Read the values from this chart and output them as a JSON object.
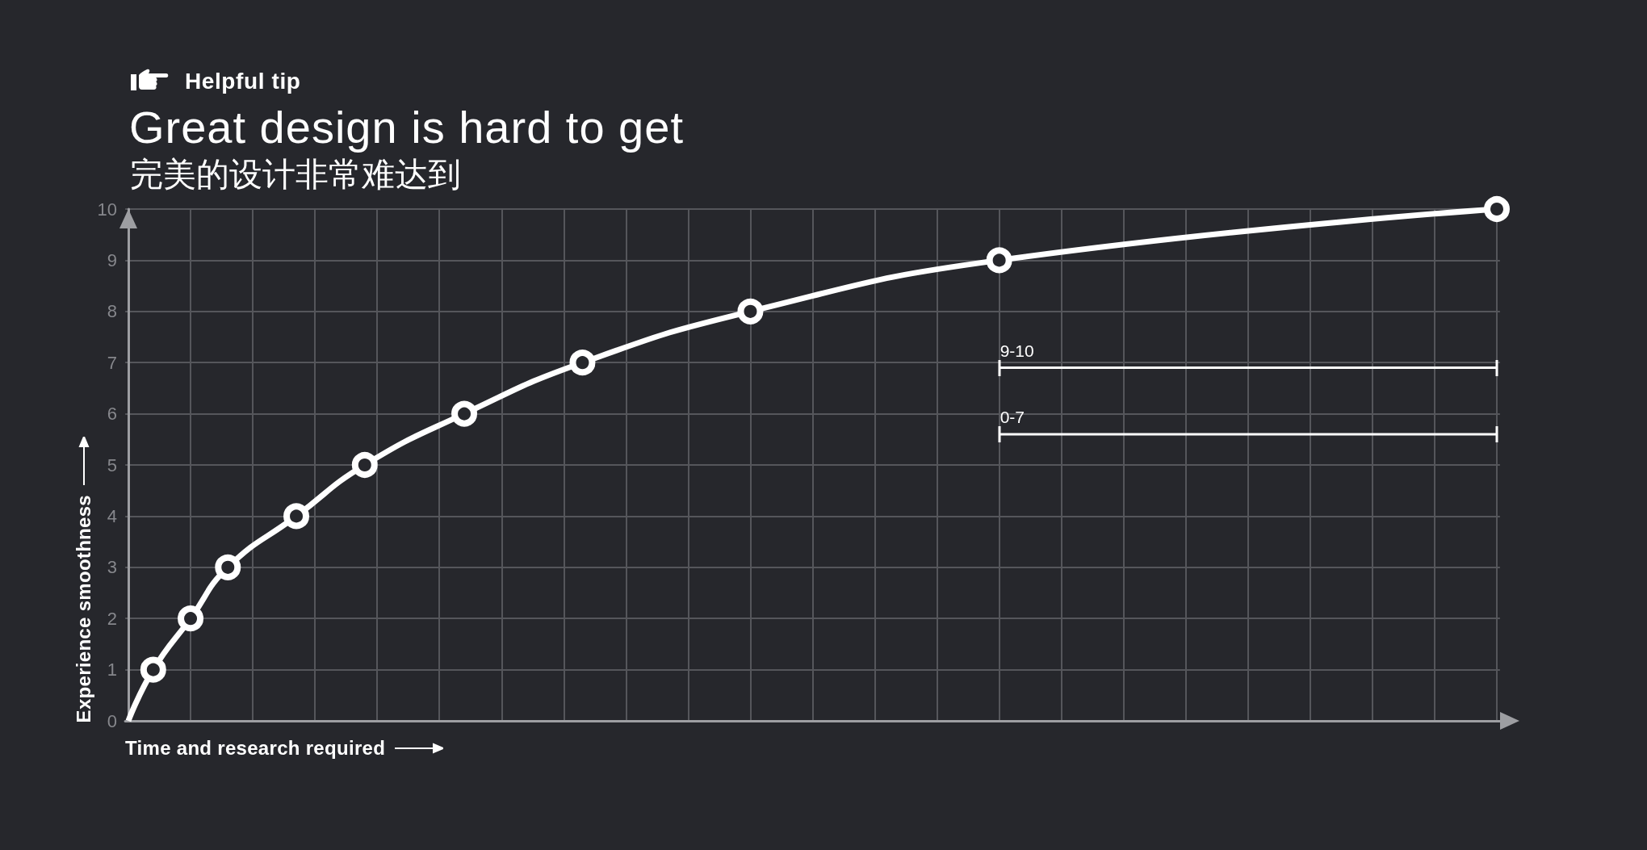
{
  "chart_data": {
    "type": "line",
    "title": "Great design is hard to get",
    "subtitle": "完美的设计非常难达到",
    "xlabel": "Time and research required",
    "ylabel": "Experience smoothness",
    "annotations": [
      "Helpful tip"
    ],
    "categories": [
      null,
      null,
      null,
      null,
      null,
      null,
      null,
      null,
      null,
      null,
      null,
      null,
      null,
      null,
      null,
      null,
      null,
      null,
      null,
      null,
      null,
      null,
      null,
      null,
      null,
      null,
      null,
      null,
      null,
      null,
      null,
      null,
      null,
      null,
      null,
      null,
      null,
      null,
      null,
      null,
      null,
      null,
      null,
      null,
      null,
      null,
      null,
      null,
      null,
      null,
      null,
      null,
      null,
      null,
      null,
      null,
      null,
      null,
      null,
      null,
      null,
      null,
      null,
      null,
      null,
      null,
      null,
      null,
      null,
      null,
      null,
      null,
      null,
      null,
      null,
      null,
      null,
      null,
      null,
      null,
      null,
      null,
      null,
      null,
      null,
      null,
      null,
      null,
      null,
      null,
      null,
      null,
      null,
      null,
      null,
      null,
      null,
      null,
      null,
      null,
      null,
      null,
      null,
      null,
      null,
      null,
      null,
      null,
      null,
      null,
      null,
      null,
      null,
      null,
      null,
      null,
      null,
      null,
      null,
      null,
      null,
      null,
      null,
      null,
      null,
      null,
      null,
      null,
      null,
      null,
      null,
      null,
      null,
      null,
      null,
      null,
      null,
      null,
      null,
      null,
      null,
      null,
      null,
      null,
      null,
      null,
      null,
      null,
      null,
      null,
      null,
      null,
      null,
      null,
      null,
      null,
      null,
      null,
      null,
      null,
      null,
      null,
      null,
      null,
      null,
      null,
      null,
      null,
      null,
      null,
      null,
      null,
      null,
      null,
      null,
      null,
      null,
      null,
      null,
      null,
      null,
      null,
      null,
      null,
      null,
      null,
      null,
      null,
      null,
      null,
      null,
      null,
      null,
      null,
      null,
      null,
      null,
      null,
      null,
      null,
      null,
      null,
      null,
      null,
      null,
      null,
      null,
      null,
      null,
      null,
      null,
      null,
      null,
      null,
      null,
      null,
      null,
      null,
      null,
      null,
      null
    ],
    "series": [
      {
        "color": "#ffffff",
        "values": [
          0,
          null,
          null,
          null,
          1,
          null,
          null,
          null,
          null,
          null,
          2,
          null,
          null,
          null,
          null,
          null,
          3,
          null,
          null,
          null,
          null,
          null,
          null,
          null,
          null,
          null,
          null,
          4,
          null,
          null,
          null,
          null,
          null,
          null,
          null,
          null,
          null,
          null,
          5,
          null,
          null,
          null,
          null,
          null,
          null,
          null,
          null,
          null,
          null,
          null,
          null,
          null,
          null,
          null,
          6,
          null,
          null,
          null,
          null,
          null,
          null,
          null,
          null,
          null,
          null,
          null,
          null,
          null,
          null,
          null,
          null,
          null,
          null,
          7,
          null,
          null,
          null,
          null,
          null,
          null,
          null,
          null,
          null,
          null,
          null,
          null,
          null,
          null,
          null,
          null,
          null,
          null,
          null,
          null,
          null,
          null,
          null,
          null,
          null,
          null,
          8,
          null,
          null,
          null,
          null,
          null,
          null,
          null,
          null,
          null,
          null,
          null,
          null,
          null,
          null,
          null,
          null,
          null,
          null,
          null,
          null,
          null,
          null,
          null,
          null,
          null,
          null,
          null,
          null,
          null,
          null,
          null,
          null,
          null,
          null,
          null,
          null,
          null,
          null,
          null,
          9,
          null,
          null,
          null,
          null,
          null,
          null,
          null,
          null,
          null,
          null,
          null,
          null,
          null,
          null,
          null,
          null,
          null,
          null,
          null,
          null,
          null,
          null,
          null,
          null,
          null,
          null,
          null,
          null,
          null,
          null,
          null,
          null,
          null,
          null,
          null,
          null,
          null,
          null,
          null,
          null,
          null,
          null,
          null,
          null,
          null,
          null,
          null,
          null,
          null,
          null,
          null,
          null,
          null,
          null,
          null,
          null,
          null,
          null,
          null,
          null,
          null,
          null,
          null,
          null,
          null,
          null,
          null,
          null,
          null,
          null,
          null,
          null,
          null,
          null,
          null,
          null,
          null,
          null,
          null,
          10
        ]
      },
      {
        "name": "9-10",
        "color": "#ffffff",
        "marker": "none",
        "values": [
          null,
          null,
          null,
          null,
          null,
          null,
          null,
          null,
          null,
          null,
          null,
          null,
          null,
          null,
          null,
          null,
          null,
          null,
          null,
          null,
          null,
          null,
          null,
          null,
          null,
          null,
          null,
          null,
          null,
          null,
          null,
          null,
          null,
          null,
          null,
          null,
          null,
          null,
          null,
          null,
          null,
          null,
          null,
          null,
          null,
          null,
          null,
          null,
          null,
          null,
          null,
          null,
          null,
          null,
          null,
          null,
          null,
          null,
          null,
          null,
          null,
          null,
          null,
          null,
          null,
          null,
          null,
          null,
          null,
          null,
          null,
          null,
          null,
          null,
          null,
          null,
          null,
          null,
          null,
          null,
          null,
          null,
          null,
          null,
          null,
          null,
          null,
          null,
          null,
          null,
          null,
          null,
          null,
          null,
          null,
          null,
          null,
          null,
          null,
          null,
          null,
          null,
          null,
          null,
          null,
          null,
          null,
          null,
          null,
          null,
          null,
          null,
          null,
          null,
          null,
          null,
          null,
          null,
          null,
          null,
          null,
          null,
          null,
          null,
          null,
          null,
          null,
          null,
          null,
          null,
          null,
          null,
          null,
          null,
          null,
          null,
          null,
          null,
          null,
          null,
          6.9,
          null,
          null,
          null,
          null,
          null,
          null,
          null,
          null,
          null,
          null,
          null,
          null,
          null,
          null,
          null,
          null,
          null,
          null,
          null,
          null,
          null,
          null,
          null,
          null,
          null,
          null,
          null,
          null,
          null,
          null,
          null,
          null,
          null,
          null,
          null,
          null,
          null,
          null,
          null,
          null,
          null,
          null,
          null,
          null,
          null,
          null,
          null,
          null,
          null,
          null,
          null,
          null,
          null,
          null,
          null,
          null,
          null,
          null,
          null,
          null,
          null,
          null,
          null,
          null,
          null,
          null,
          null,
          null,
          null,
          null,
          null,
          null,
          null,
          null,
          null,
          null,
          null,
          null,
          null,
          6.9
        ]
      },
      {
        "name": "0-7",
        "color": "#ffffff",
        "marker": "none",
        "values": [
          null,
          null,
          null,
          null,
          null,
          null,
          null,
          null,
          null,
          null,
          null,
          null,
          null,
          null,
          null,
          null,
          null,
          null,
          null,
          null,
          null,
          null,
          null,
          null,
          null,
          null,
          null,
          null,
          null,
          null,
          null,
          null,
          null,
          null,
          null,
          null,
          null,
          null,
          null,
          null,
          null,
          null,
          null,
          null,
          null,
          null,
          null,
          null,
          null,
          null,
          null,
          null,
          null,
          null,
          null,
          null,
          null,
          null,
          null,
          null,
          null,
          null,
          null,
          null,
          null,
          null,
          null,
          null,
          null,
          null,
          null,
          null,
          null,
          null,
          null,
          null,
          null,
          null,
          null,
          null,
          null,
          null,
          null,
          null,
          null,
          null,
          null,
          null,
          null,
          null,
          null,
          null,
          null,
          null,
          null,
          null,
          null,
          null,
          null,
          null,
          null,
          null,
          null,
          null,
          null,
          null,
          null,
          null,
          null,
          null,
          null,
          null,
          null,
          null,
          null,
          null,
          null,
          null,
          null,
          null,
          null,
          null,
          null,
          null,
          null,
          null,
          null,
          null,
          null,
          null,
          null,
          null,
          null,
          null,
          null,
          null,
          null,
          null,
          null,
          null,
          5.6,
          null,
          null,
          null,
          null,
          null,
          null,
          null,
          null,
          null,
          null,
          null,
          null,
          null,
          null,
          null,
          null,
          null,
          null,
          null,
          null,
          null,
          null,
          null,
          null,
          null,
          null,
          null,
          null,
          null,
          null,
          null,
          null,
          null,
          null,
          null,
          null,
          null,
          null,
          null,
          null,
          null,
          null,
          null,
          null,
          null,
          null,
          null,
          null,
          null,
          null,
          null,
          null,
          null,
          null,
          null,
          null,
          null,
          null,
          null,
          null,
          null,
          null,
          null,
          null,
          null,
          null,
          null,
          null,
          null,
          null,
          null,
          null,
          null,
          null,
          null,
          null,
          null,
          null,
          null,
          5.6
        ]
      }
    ],
    "ylim": [
      0,
      10
    ],
    "yticks": [
      0,
      1,
      2,
      3,
      4,
      5,
      6,
      7,
      8,
      9,
      10
    ],
    "grid": true,
    "tick_labels": "y",
    "marker": "circle",
    "line_style": "solid"
  }
}
